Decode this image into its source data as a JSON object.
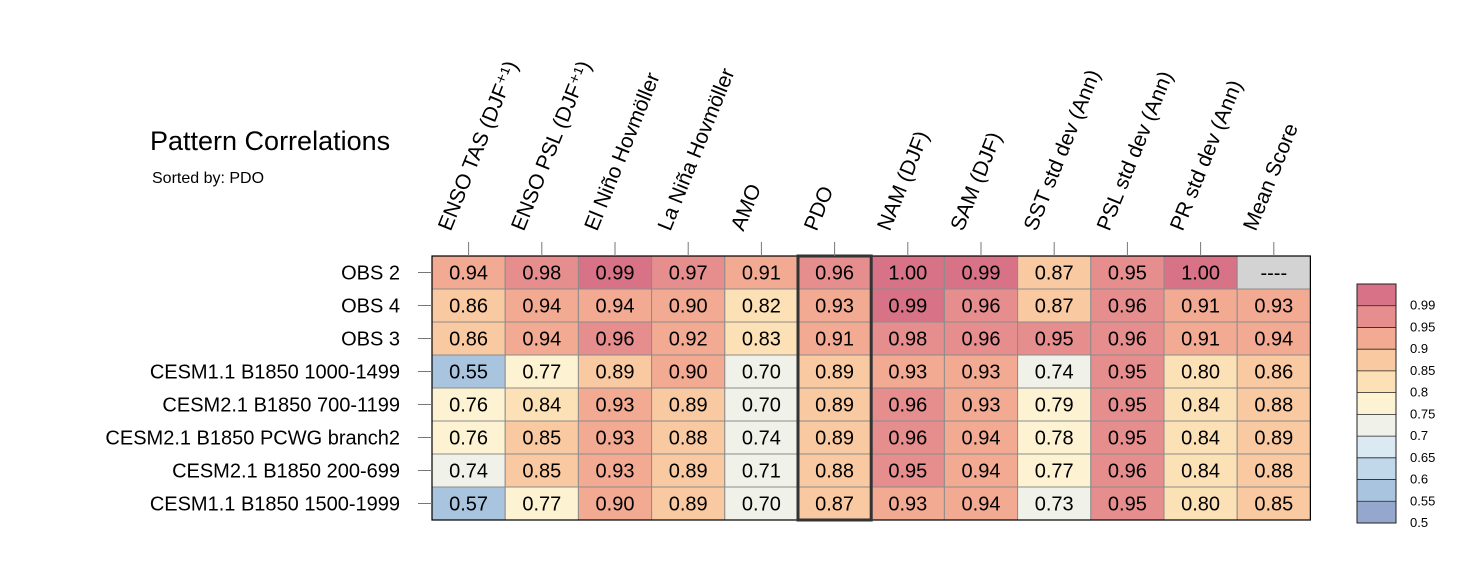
{
  "chart_data": {
    "type": "heatmap",
    "title": "Pattern Correlations",
    "subtitle": "Sorted by: PDO",
    "columns": [
      "ENSO TAS (DJF⁺¹)",
      "ENSO PSL (DJF⁺¹)",
      "El Niño Hovmöller",
      "La Niña Hovmöller",
      "AMO",
      "PDO",
      "NAM (DJF)",
      "SAM (DJF)",
      "SST std dev (Ann)",
      "PSL std dev (Ann)",
      "PR std dev (Ann)",
      "Mean Score"
    ],
    "rows": [
      "OBS 2",
      "OBS 4",
      "OBS 3",
      "CESM1.1 B1850 1000-1499",
      "CESM2.1 B1850 700-1199",
      "CESM2.1 B1850 PCWG branch2",
      "CESM2.1 B1850 200-699",
      "CESM1.1 B1850 1500-1999"
    ],
    "values": [
      [
        0.94,
        0.98,
        0.99,
        0.97,
        0.91,
        0.96,
        1.0,
        0.99,
        0.87,
        0.95,
        1.0,
        null
      ],
      [
        0.86,
        0.94,
        0.94,
        0.9,
        0.82,
        0.93,
        0.99,
        0.96,
        0.87,
        0.96,
        0.91,
        0.93
      ],
      [
        0.86,
        0.94,
        0.96,
        0.92,
        0.83,
        0.91,
        0.98,
        0.96,
        0.95,
        0.96,
        0.91,
        0.94
      ],
      [
        0.55,
        0.77,
        0.89,
        0.9,
        0.7,
        0.89,
        0.93,
        0.93,
        0.74,
        0.95,
        0.8,
        0.86
      ],
      [
        0.76,
        0.84,
        0.93,
        0.89,
        0.7,
        0.89,
        0.96,
        0.93,
        0.79,
        0.95,
        0.84,
        0.88
      ],
      [
        0.76,
        0.85,
        0.93,
        0.88,
        0.74,
        0.89,
        0.96,
        0.94,
        0.78,
        0.95,
        0.84,
        0.89
      ],
      [
        0.74,
        0.85,
        0.93,
        0.89,
        0.71,
        0.88,
        0.95,
        0.94,
        0.77,
        0.96,
        0.84,
        0.88
      ],
      [
        0.57,
        0.77,
        0.9,
        0.89,
        0.7,
        0.87,
        0.93,
        0.94,
        0.73,
        0.95,
        0.8,
        0.85
      ]
    ],
    "missing_label": "----",
    "sorted_column": "PDO",
    "colorbar": {
      "tick_labels": [
        "0.99",
        "0.95",
        "0.9",
        "0.85",
        "0.8",
        "0.75",
        "0.7",
        "0.65",
        "0.6",
        "0.55",
        "0.5"
      ],
      "bins": [
        {
          "min": 0.5,
          "color": "#96a7cd"
        },
        {
          "min": 0.55,
          "color": "#a9c4de"
        },
        {
          "min": 0.6,
          "color": "#c0d8ea"
        },
        {
          "min": 0.65,
          "color": "#dbe9f2"
        },
        {
          "min": 0.7,
          "color": "#f0f2e9"
        },
        {
          "min": 0.75,
          "color": "#fdf3d3"
        },
        {
          "min": 0.8,
          "color": "#fce0b6"
        },
        {
          "min": 0.85,
          "color": "#f9c9a1"
        },
        {
          "min": 0.9,
          "color": "#f2aa92"
        },
        {
          "min": 0.95,
          "color": "#e68d8e"
        },
        {
          "min": 0.99,
          "color": "#d77287"
        }
      ],
      "missing_color": "#d3d3d3"
    }
  }
}
